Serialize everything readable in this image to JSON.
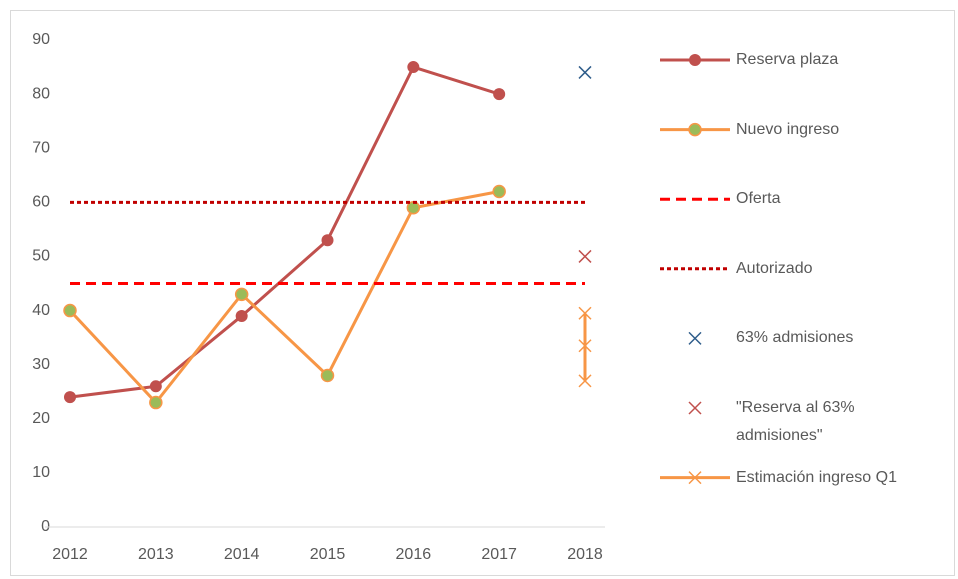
{
  "chart_data": {
    "type": "line",
    "categories": [
      "2012",
      "2013",
      "2014",
      "2015",
      "2016",
      "2017",
      "2018"
    ],
    "ylim": [
      0,
      90
    ],
    "yticks": [
      0,
      10,
      20,
      30,
      40,
      50,
      60,
      70,
      80,
      90
    ],
    "grid": false,
    "legend": "right",
    "series": [
      {
        "name": "Reserva plaza",
        "color": "#c0504d",
        "style": "solid",
        "marker": "circle",
        "values": [
          24,
          26,
          39,
          53,
          85,
          80,
          null
        ]
      },
      {
        "name": "Nuevo ingreso",
        "color": "#f79646",
        "marker_fill": "#9bbb59",
        "style": "solid",
        "marker": "circle",
        "values": [
          40,
          23,
          43,
          28,
          59,
          62,
          null
        ]
      },
      {
        "name": "Oferta",
        "color": "#ff0000",
        "style": "dashed",
        "marker": "none",
        "values": [
          45,
          45,
          45,
          45,
          45,
          45,
          45
        ]
      },
      {
        "name": "Autorizado",
        "color": "#c00000",
        "style": "dotted",
        "marker": "none",
        "values": [
          60,
          60,
          60,
          60,
          60,
          60,
          60
        ]
      },
      {
        "name": "63% admisiones",
        "color": "#2e5c8a",
        "style": "none",
        "marker": "x",
        "values": [
          null,
          null,
          null,
          null,
          null,
          null,
          84
        ]
      },
      {
        "name": "\"Reserva al 63% admisiones\"",
        "color": "#c0504d",
        "style": "none",
        "marker": "x",
        "values": [
          null,
          null,
          null,
          null,
          null,
          null,
          50
        ]
      },
      {
        "name": "Estimación ingreso Q1",
        "color": "#f79646",
        "style": "solid",
        "marker": "x",
        "x": [
          "2018",
          "2018",
          "2018"
        ],
        "values": [
          27,
          33.5,
          39.5
        ]
      }
    ]
  }
}
